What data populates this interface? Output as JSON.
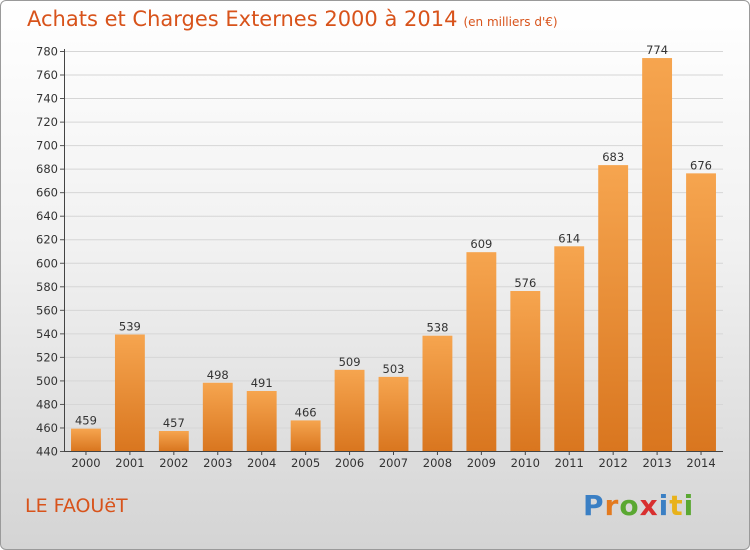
{
  "title": "Achats et Charges Externes 2000 à 2014",
  "subtitle": "(en milliers d'€)",
  "place": "LE FAOUëT",
  "logo": {
    "text": "Proxiti",
    "letters": [
      {
        "ch": "P",
        "color": "#3a7fc4"
      },
      {
        "ch": "r",
        "color": "#e37a1f"
      },
      {
        "ch": "o",
        "color": "#5aa832"
      },
      {
        "ch": "x",
        "color": "#d82f2f"
      },
      {
        "ch": "i",
        "color": "#3a7fc4"
      },
      {
        "ch": "t",
        "color": "#e8b21b"
      },
      {
        "ch": "i",
        "color": "#5aa832"
      }
    ]
  },
  "colors": {
    "title": "#d8531b",
    "bar_light": "#f6a54f",
    "bar_dark": "#d9761f"
  },
  "chart_data": {
    "type": "bar",
    "categories": [
      "2000",
      "2001",
      "2002",
      "2003",
      "2004",
      "2005",
      "2006",
      "2007",
      "2008",
      "2009",
      "2010",
      "2011",
      "2012",
      "2013",
      "2014"
    ],
    "values": [
      459,
      539,
      457,
      498,
      491,
      466,
      509,
      503,
      538,
      609,
      576,
      614,
      683,
      774,
      676
    ],
    "ylim": [
      440,
      780
    ],
    "yticks": [
      440,
      460,
      480,
      500,
      520,
      540,
      560,
      580,
      600,
      620,
      640,
      660,
      680,
      700,
      720,
      740,
      760,
      780
    ],
    "grid": true,
    "legend": "none"
  }
}
